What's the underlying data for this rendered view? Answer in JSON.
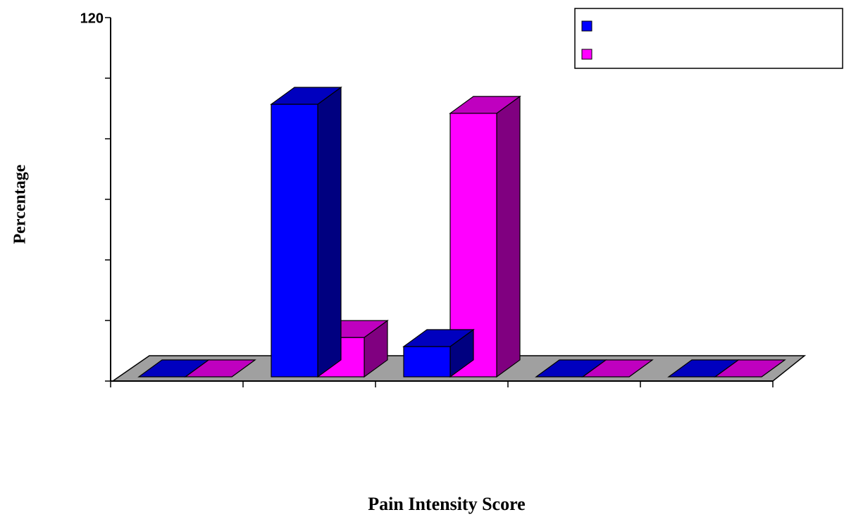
{
  "chart_data": {
    "type": "bar3d",
    "x_label": "Pain Intensity Score",
    "y_label": "Percentage",
    "categories": [
      null,
      null,
      null,
      null,
      null
    ],
    "series": [
      {
        "name": null,
        "color": "#0000ff",
        "values": [
          0,
          90,
          10,
          0,
          0
        ]
      },
      {
        "name": null,
        "color": "#ff00ff",
        "values": [
          0,
          13,
          87,
          0,
          0
        ]
      }
    ],
    "ylim": [
      0,
      120
    ],
    "yticks": [
      {
        "value": 0,
        "label": null
      },
      {
        "value": 20,
        "label": null
      },
      {
        "value": 40,
        "label": null
      },
      {
        "value": 60,
        "label": null
      },
      {
        "value": 80,
        "label": null
      },
      {
        "value": 100,
        "label": null
      },
      120
    ],
    "legend": "upper right"
  }
}
